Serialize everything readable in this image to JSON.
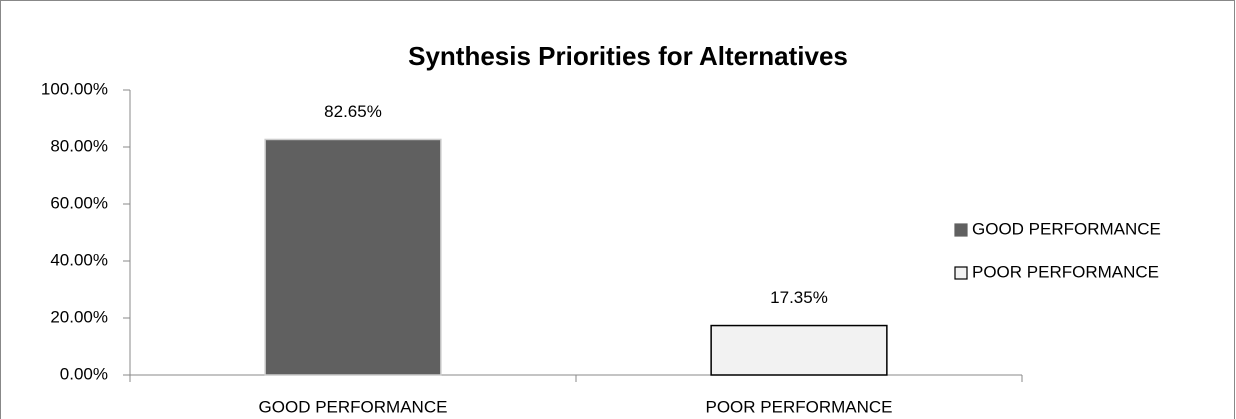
{
  "chart_data": {
    "type": "bar",
    "title": "Synthesis Priorities for Alternatives",
    "categories": [
      "GOOD PERFORMANCE",
      "POOR PERFORMANCE"
    ],
    "values": [
      82.65,
      17.35
    ],
    "value_labels": [
      "82.65%",
      "17.35%"
    ],
    "colors": [
      "#606060",
      "#f2f2f2"
    ],
    "ylim": [
      0,
      100
    ],
    "yticks": [
      {
        "value": 0,
        "label": "0.00%"
      },
      {
        "value": 20,
        "label": "20.00%"
      },
      {
        "value": 40,
        "label": "40.00%"
      },
      {
        "value": 60,
        "label": "60.00%"
      },
      {
        "value": 80,
        "label": "80.00%"
      },
      {
        "value": 100,
        "label": "100.00%"
      }
    ],
    "grid": false,
    "legend": "right"
  }
}
